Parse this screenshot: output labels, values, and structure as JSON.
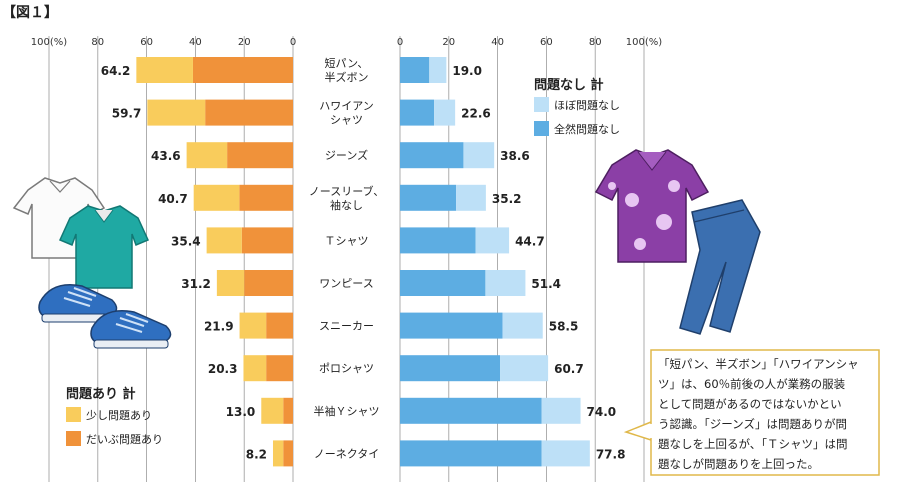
{
  "figure_label": "【図１】",
  "chart_data": {
    "type": "bar",
    "orientation": "horizontal",
    "stacked": true,
    "layout": "diverging-butterfly",
    "categories": [
      [
        "短パン、",
        "半ズボン"
      ],
      [
        "ハワイアン",
        "シャツ"
      ],
      [
        "ジーンズ"
      ],
      [
        "ノースリーブ、",
        "袖なし"
      ],
      [
        "Ｔシャツ"
      ],
      [
        "ワンピース"
      ],
      [
        "スニーカー"
      ],
      [
        "ポロシャツ"
      ],
      [
        "半袖Ｙシャツ"
      ],
      [
        "ノーネクタイ"
      ]
    ],
    "left_panel": {
      "title": "問題あり 計",
      "totals": [
        "64.2",
        "59.7",
        "43.6",
        "40.7",
        "35.4",
        "31.2",
        "21.9",
        "20.3",
        "13.0",
        "8.2"
      ],
      "series": [
        {
          "name": "だいぶ問題あり",
          "color": "#f0923a",
          "values": [
            41,
            36,
            27,
            22,
            21,
            20,
            11,
            11,
            4,
            4
          ]
        },
        {
          "name": "少し問題あり",
          "color": "#f9cc5c",
          "values": [
            23.2,
            23.7,
            16.6,
            18.7,
            14.4,
            11.2,
            10.9,
            9.3,
            9.0,
            4.2
          ]
        }
      ],
      "ticks": [
        "100(%)",
        "80",
        "60",
        "40",
        "20",
        "0"
      ],
      "xlim": [
        0,
        100
      ]
    },
    "right_panel": {
      "title": "問題なし 計",
      "totals": [
        "19.0",
        "22.6",
        "38.6",
        "35.2",
        "44.7",
        "51.4",
        "58.5",
        "60.7",
        "74.0",
        "77.8"
      ],
      "series": [
        {
          "name": "全然問題なし",
          "color": "#5dade2",
          "values": [
            12,
            14,
            26,
            23,
            31,
            35,
            42,
            41,
            58,
            58
          ]
        },
        {
          "name": "ほぼ問題なし",
          "color": "#bde0f7",
          "values": [
            7.0,
            8.6,
            12.6,
            12.2,
            13.7,
            16.4,
            16.5,
            19.7,
            16.0,
            19.8
          ]
        }
      ],
      "ticks": [
        "0",
        "20",
        "40",
        "60",
        "80",
        "100(%)"
      ],
      "xlim": [
        0,
        100
      ]
    }
  },
  "legend_left": {
    "title": "問題あり 計",
    "items": [
      {
        "label": "少し問題あり",
        "color": "#f9cc5c"
      },
      {
        "label": "だいぶ問題あり",
        "color": "#f0923a"
      }
    ]
  },
  "legend_right": {
    "title": "問題なし 計",
    "items": [
      {
        "label": "ほぼ問題なし",
        "color": "#bde0f7"
      },
      {
        "label": "全然問題なし",
        "color": "#5dade2"
      }
    ]
  },
  "callout": {
    "lines": [
      "「短パン、半ズボン」「ハワイアンシャ",
      "ツ」は、60％前後の人が業務の服装",
      "として問題があるのではないかとい",
      "う認識。「ジーンズ」は問題ありが問",
      "題なしを上回るが、「Ｔシャツ」は問",
      "題なしが問題ありを上回った。"
    ],
    "border_color": "#e0b84a"
  },
  "illustrations": {
    "left": [
      "white-shirt-icon",
      "polo-shirt-icon",
      "sneakers-icon"
    ],
    "right": [
      "hawaiian-shirt-icon",
      "jeans-icon"
    ]
  }
}
